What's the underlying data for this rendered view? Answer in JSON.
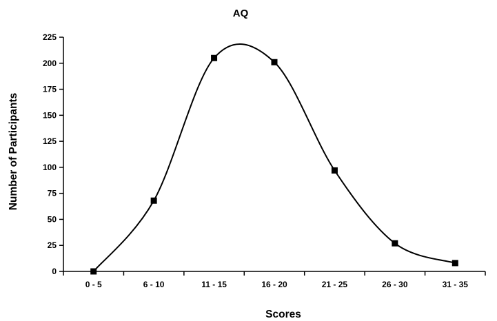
{
  "chart_data": {
    "type": "line",
    "title": "AQ",
    "xlabel": "Scores",
    "ylabel": "Number of Participants",
    "categories": [
      "0 - 5",
      "6 - 10",
      "11 - 15",
      "16 - 20",
      "21 - 25",
      "26 - 30",
      "31 - 35"
    ],
    "series": [
      {
        "values": [
          0,
          68,
          205,
          201,
          97,
          27,
          8
        ],
        "marker": "square",
        "smooth": true,
        "color": "#000000"
      }
    ],
    "ylim": [
      0,
      225
    ],
    "yticks": [
      0,
      25,
      50,
      75,
      100,
      125,
      150,
      175,
      200,
      225
    ],
    "grid": false,
    "legend": "none"
  }
}
